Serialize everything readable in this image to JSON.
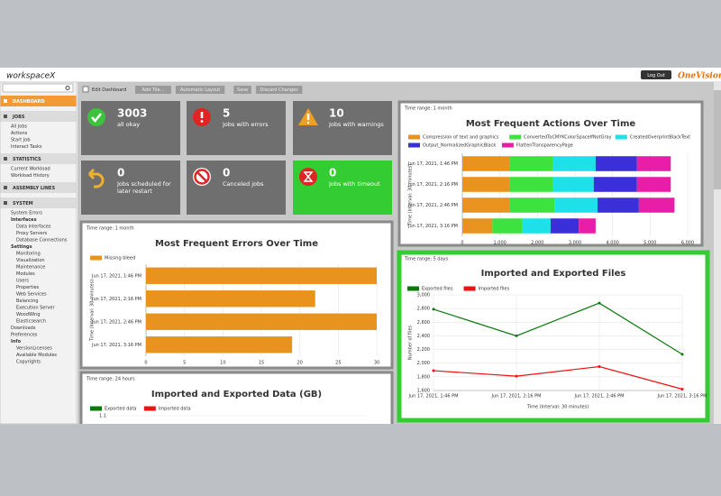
{
  "header": {
    "logo": "workspaceX",
    "logout": "Log Out",
    "brand": "OneVision"
  },
  "toolbar": {
    "checkbox_label": "Edit Dashboard",
    "buttons": [
      "Add Tile...",
      "Automatic Layout",
      "Save",
      "Discard Changes"
    ]
  },
  "sidebar": {
    "sections": [
      {
        "title": "DASHBOARD"
      },
      {
        "title": "JOBS",
        "items": [
          {
            "label": "All Jobs"
          },
          {
            "label": "Actions"
          },
          {
            "label": "Start Job"
          },
          {
            "label": "Interact Tasks"
          }
        ]
      },
      {
        "title": "STATISTICS",
        "items": [
          {
            "label": "Current Workload"
          },
          {
            "label": "Workload History"
          }
        ]
      },
      {
        "title": "ASSEMBLY LINES"
      },
      {
        "title": "SYSTEM",
        "items": [
          {
            "label": "System Errors"
          },
          {
            "label": "Interfaces",
            "items": [
              "Data Interfaces",
              "Proxy Servers",
              "Database Connections"
            ]
          },
          {
            "label": "Settings",
            "items": [
              "Monitoring",
              "Visualization",
              "Maintenance",
              "Modules",
              "Users",
              "Properties",
              "Web Services",
              "Balancing",
              "Execution Server",
              "WoodWing",
              "Elasticsearch"
            ]
          },
          {
            "label": "Downloads"
          },
          {
            "label": "Preferences"
          },
          {
            "label": "Info",
            "items": [
              "VersionLicenses",
              "Available Modules",
              "Copyrights"
            ]
          }
        ]
      }
    ]
  },
  "tiles": [
    {
      "value": 3003,
      "label": "all okay",
      "color": "#6f6f6f"
    },
    {
      "value": 5,
      "label": "Jobs with errors",
      "color": "#6f6f6f"
    },
    {
      "value": 10,
      "label": "Jobs with warnings",
      "color": "#6f6f6f"
    },
    {
      "value": 0,
      "label": "Jobs scheduled for later restart",
      "color": "#6f6f6f"
    },
    {
      "value": 0,
      "label": "Canceled jobs",
      "color": "#6f6f6f"
    },
    {
      "value": 0,
      "label": "Jobs with timeout",
      "color": "#33cc33"
    }
  ],
  "chart_data": [
    {
      "type": "bar",
      "orientation": "horizontal",
      "stacked": true,
      "range": "Time range: 1 month",
      "title": "Most Frequent Actions Over Time",
      "y_label": "Time (Interval: 30 minutes)",
      "categories": [
        "Jun 17, 2021, 1:46 PM",
        "Jun 17, 2021, 2:16 PM",
        "Jun 17, 2021, 2:46 PM",
        "Jun 17, 2021, 3:16 PM"
      ],
      "series": [
        {
          "name": "Compression of text and graphics",
          "color": "#e8931e",
          "values": [
            1250,
            1250,
            1250,
            800
          ]
        },
        {
          "name": "ConvertedToCMYKColorSpaceIfNotGray",
          "color": "#3ee23e",
          "values": [
            1150,
            1150,
            1200,
            800
          ]
        },
        {
          "name": "CreatedOverprintBlackText",
          "color": "#1ee0e8",
          "values": [
            1150,
            1100,
            1150,
            750
          ]
        },
        {
          "name": "Output_NormalizedGraphicBlack",
          "color": "#3a2fd8",
          "values": [
            1100,
            1150,
            1100,
            750
          ]
        },
        {
          "name": "FlattenTransparencyPage",
          "color": "#e81ea8",
          "values": [
            900,
            900,
            950,
            450
          ]
        }
      ],
      "xlim": [
        0,
        6000
      ],
      "xticks": [
        0,
        {
          "value": 1000,
          "label": "1,000"
        },
        {
          "value": 2000,
          "label": "2,000"
        },
        {
          "value": 3000,
          "label": "3,000"
        },
        {
          "value": 4000,
          "label": "4,000"
        },
        {
          "value": 5000,
          "label": "5,000"
        },
        {
          "value": 6000,
          "label": "6,000"
        }
      ],
      "grid": true
    },
    {
      "type": "bar",
      "orientation": "horizontal",
      "stacked": false,
      "range": "Time range: 1 month",
      "title": "Most Frequent Errors Over Time",
      "y_label": "Time (Interval: 30 minutes)",
      "categories": [
        "Jun 17, 2021, 1:46 PM",
        "Jun 17, 2021, 2:16 PM",
        "Jun 17, 2021, 2:46 PM",
        "Jun 17, 2021, 3:16 PM"
      ],
      "series": [
        {
          "name": "Missing bleed",
          "color": "#e8931e",
          "values": [
            30,
            22,
            30,
            19
          ]
        }
      ],
      "xlim": [
        0,
        30
      ],
      "xticks": [
        0,
        5,
        10,
        15,
        20,
        25,
        30
      ],
      "grid": true
    },
    {
      "type": "line",
      "range": "Time range: 5 days",
      "title": "Imported and Exported Files",
      "x_label": "Time (Interval: 30 minutes)",
      "y_label": "Number of files",
      "categories": [
        "Jun 17, 2021, 1:46 PM",
        "Jun 17, 2021, 2:16 PM",
        "Jun 17, 2021, 2:46 PM",
        "Jun 17, 2021, 3:16 PM"
      ],
      "series": [
        {
          "name": "Exported files",
          "color": "#0b7a0b",
          "values": [
            2790,
            2400,
            2880,
            2130
          ]
        },
        {
          "name": "Imported files",
          "color": "#ee1111",
          "values": [
            1890,
            1810,
            1950,
            1620
          ]
        }
      ],
      "ylim": [
        1600,
        3000
      ],
      "yticks": [
        {
          "value": 1600,
          "label": "1,600"
        },
        {
          "value": 1800,
          "label": "1,800"
        },
        {
          "value": 2000,
          "label": "2,000"
        },
        {
          "value": 2200,
          "label": "2,200"
        },
        {
          "value": 2400,
          "label": "2,400"
        },
        {
          "value": 2600,
          "label": "2,600"
        },
        {
          "value": 2800,
          "label": "2,800"
        },
        {
          "value": 3000,
          "label": "3,000"
        }
      ],
      "grid": true
    },
    {
      "type": "line",
      "range": "Time range: 24 hours",
      "title": "Imported and Exported Data (GB)",
      "series": [
        {
          "name": "Exported data",
          "color": "#0b7a0b"
        },
        {
          "name": "Imported data",
          "color": "#ee1111"
        }
      ],
      "ylim": [
        0,
        1.1
      ],
      "yticks": [
        1.1
      ],
      "grid": true
    }
  ]
}
